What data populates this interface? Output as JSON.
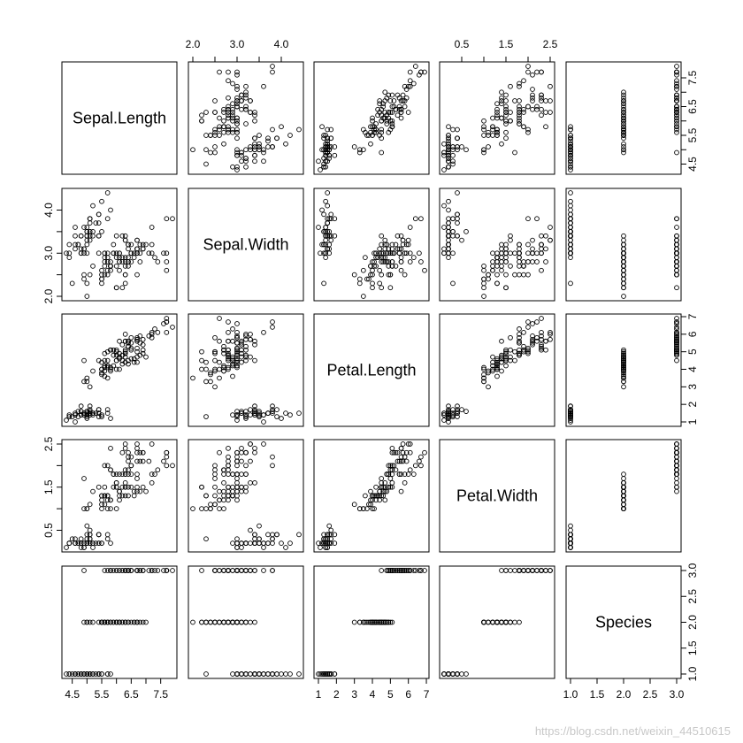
{
  "chart_data": {
    "type": "scatter",
    "chart_kind": "scatterplot-matrix",
    "variables": [
      "Sepal.Length",
      "Sepal.Width",
      "Petal.Length",
      "Petal.Width",
      "Species"
    ],
    "axis_ranges": {
      "Sepal.Length": [
        4.3,
        7.9
      ],
      "Sepal.Width": [
        2.0,
        4.4
      ],
      "Petal.Length": [
        1.0,
        6.9
      ],
      "Petal.Width": [
        0.1,
        2.5
      ],
      "Species": [
        1.0,
        3.0
      ]
    },
    "tick_labels": {
      "Sepal.Length": [
        "4.5",
        "5.5",
        "6.5",
        "7.5"
      ],
      "Sepal.Width": [
        "2.0",
        "3.0",
        "4.0"
      ],
      "Petal.Length": [
        "1",
        "2",
        "3",
        "4",
        "5",
        "6",
        "7"
      ],
      "Petal.Width": [
        "0.5",
        "1.5",
        "2.5"
      ],
      "Species": [
        "1.0",
        "1.5",
        "2.0",
        "2.5",
        "3.0"
      ]
    },
    "minor_ticks": {
      "Sepal.Length": [
        5.0,
        6.0,
        7.0
      ],
      "Sepal.Width": [
        2.5,
        3.5
      ],
      "Petal.Width": [
        1.0,
        2.0
      ]
    },
    "grid": false,
    "legend": "none",
    "marker": "open-circle",
    "point_color": "#000000",
    "columns": [
      "Sepal.Length",
      "Sepal.Width",
      "Petal.Length",
      "Petal.Width",
      "Species"
    ],
    "rows": [
      [
        5.1,
        3.5,
        1.4,
        0.2,
        1
      ],
      [
        4.9,
        3.0,
        1.4,
        0.2,
        1
      ],
      [
        4.7,
        3.2,
        1.3,
        0.2,
        1
      ],
      [
        4.6,
        3.1,
        1.5,
        0.2,
        1
      ],
      [
        5.0,
        3.6,
        1.4,
        0.2,
        1
      ],
      [
        5.4,
        3.9,
        1.7,
        0.4,
        1
      ],
      [
        4.6,
        3.4,
        1.4,
        0.3,
        1
      ],
      [
        5.0,
        3.4,
        1.5,
        0.2,
        1
      ],
      [
        4.4,
        2.9,
        1.4,
        0.2,
        1
      ],
      [
        4.9,
        3.1,
        1.5,
        0.1,
        1
      ],
      [
        5.4,
        3.7,
        1.5,
        0.2,
        1
      ],
      [
        4.8,
        3.4,
        1.6,
        0.2,
        1
      ],
      [
        4.8,
        3.0,
        1.4,
        0.1,
        1
      ],
      [
        4.3,
        3.0,
        1.1,
        0.1,
        1
      ],
      [
        5.8,
        4.0,
        1.2,
        0.2,
        1
      ],
      [
        5.7,
        4.4,
        1.5,
        0.4,
        1
      ],
      [
        5.4,
        3.9,
        1.3,
        0.4,
        1
      ],
      [
        5.1,
        3.5,
        1.4,
        0.3,
        1
      ],
      [
        5.7,
        3.8,
        1.7,
        0.3,
        1
      ],
      [
        5.1,
        3.8,
        1.5,
        0.3,
        1
      ],
      [
        5.4,
        3.4,
        1.7,
        0.2,
        1
      ],
      [
        5.1,
        3.7,
        1.5,
        0.4,
        1
      ],
      [
        4.6,
        3.6,
        1.0,
        0.2,
        1
      ],
      [
        5.1,
        3.3,
        1.7,
        0.5,
        1
      ],
      [
        4.8,
        3.4,
        1.9,
        0.2,
        1
      ],
      [
        5.0,
        3.0,
        1.6,
        0.2,
        1
      ],
      [
        5.0,
        3.4,
        1.6,
        0.4,
        1
      ],
      [
        5.2,
        3.5,
        1.5,
        0.2,
        1
      ],
      [
        5.2,
        3.4,
        1.4,
        0.2,
        1
      ],
      [
        4.7,
        3.2,
        1.6,
        0.2,
        1
      ],
      [
        4.8,
        3.1,
        1.6,
        0.2,
        1
      ],
      [
        5.4,
        3.4,
        1.5,
        0.4,
        1
      ],
      [
        5.2,
        4.1,
        1.5,
        0.1,
        1
      ],
      [
        5.5,
        4.2,
        1.4,
        0.2,
        1
      ],
      [
        4.9,
        3.1,
        1.5,
        0.2,
        1
      ],
      [
        5.0,
        3.2,
        1.2,
        0.2,
        1
      ],
      [
        5.5,
        3.5,
        1.3,
        0.2,
        1
      ],
      [
        4.9,
        3.6,
        1.4,
        0.1,
        1
      ],
      [
        4.4,
        3.0,
        1.3,
        0.2,
        1
      ],
      [
        5.1,
        3.4,
        1.5,
        0.2,
        1
      ],
      [
        5.0,
        3.5,
        1.3,
        0.3,
        1
      ],
      [
        4.5,
        2.3,
        1.3,
        0.3,
        1
      ],
      [
        4.4,
        3.2,
        1.3,
        0.2,
        1
      ],
      [
        5.0,
        3.5,
        1.6,
        0.6,
        1
      ],
      [
        5.1,
        3.8,
        1.9,
        0.4,
        1
      ],
      [
        4.8,
        3.0,
        1.4,
        0.3,
        1
      ],
      [
        5.1,
        3.8,
        1.6,
        0.2,
        1
      ],
      [
        4.6,
        3.2,
        1.4,
        0.2,
        1
      ],
      [
        5.3,
        3.7,
        1.5,
        0.2,
        1
      ],
      [
        5.0,
        3.3,
        1.4,
        0.2,
        1
      ],
      [
        7.0,
        3.2,
        4.7,
        1.4,
        2
      ],
      [
        6.4,
        3.2,
        4.5,
        1.5,
        2
      ],
      [
        6.9,
        3.1,
        4.9,
        1.5,
        2
      ],
      [
        5.5,
        2.3,
        4.0,
        1.3,
        2
      ],
      [
        6.5,
        2.8,
        4.6,
        1.5,
        2
      ],
      [
        5.7,
        2.8,
        4.5,
        1.3,
        2
      ],
      [
        6.3,
        3.3,
        4.7,
        1.6,
        2
      ],
      [
        4.9,
        2.4,
        3.3,
        1.0,
        2
      ],
      [
        6.6,
        2.9,
        4.6,
        1.3,
        2
      ],
      [
        5.2,
        2.7,
        3.9,
        1.4,
        2
      ],
      [
        5.0,
        2.0,
        3.5,
        1.0,
        2
      ],
      [
        5.9,
        3.0,
        4.2,
        1.5,
        2
      ],
      [
        6.0,
        2.2,
        4.0,
        1.0,
        2
      ],
      [
        6.1,
        2.9,
        4.7,
        1.4,
        2
      ],
      [
        5.6,
        2.9,
        3.6,
        1.3,
        2
      ],
      [
        6.7,
        3.1,
        4.4,
        1.4,
        2
      ],
      [
        5.6,
        3.0,
        4.5,
        1.5,
        2
      ],
      [
        5.8,
        2.7,
        4.1,
        1.0,
        2
      ],
      [
        6.2,
        2.2,
        4.5,
        1.5,
        2
      ],
      [
        5.6,
        2.5,
        3.9,
        1.1,
        2
      ],
      [
        5.9,
        3.2,
        4.8,
        1.8,
        2
      ],
      [
        6.1,
        2.8,
        4.0,
        1.3,
        2
      ],
      [
        6.3,
        2.5,
        4.9,
        1.5,
        2
      ],
      [
        6.1,
        2.8,
        4.7,
        1.2,
        2
      ],
      [
        6.4,
        2.9,
        4.3,
        1.3,
        2
      ],
      [
        6.6,
        3.0,
        4.4,
        1.4,
        2
      ],
      [
        6.8,
        2.8,
        4.8,
        1.4,
        2
      ],
      [
        6.7,
        3.0,
        5.0,
        1.7,
        2
      ],
      [
        6.0,
        2.9,
        4.5,
        1.5,
        2
      ],
      [
        5.7,
        2.6,
        3.5,
        1.0,
        2
      ],
      [
        5.5,
        2.4,
        3.8,
        1.1,
        2
      ],
      [
        5.5,
        2.4,
        3.7,
        1.0,
        2
      ],
      [
        5.8,
        2.7,
        3.9,
        1.2,
        2
      ],
      [
        6.0,
        2.7,
        5.1,
        1.6,
        2
      ],
      [
        5.4,
        3.0,
        4.5,
        1.5,
        2
      ],
      [
        6.0,
        3.4,
        4.5,
        1.6,
        2
      ],
      [
        6.7,
        3.1,
        4.7,
        1.5,
        2
      ],
      [
        6.3,
        2.3,
        4.4,
        1.3,
        2
      ],
      [
        5.6,
        3.0,
        4.1,
        1.3,
        2
      ],
      [
        5.5,
        2.5,
        4.0,
        1.3,
        2
      ],
      [
        5.5,
        2.6,
        4.4,
        1.2,
        2
      ],
      [
        6.1,
        3.0,
        4.6,
        1.4,
        2
      ],
      [
        5.8,
        2.6,
        4.0,
        1.2,
        2
      ],
      [
        5.0,
        2.3,
        3.3,
        1.0,
        2
      ],
      [
        5.6,
        2.7,
        4.2,
        1.3,
        2
      ],
      [
        5.7,
        3.0,
        4.2,
        1.2,
        2
      ],
      [
        5.7,
        2.9,
        4.2,
        1.3,
        2
      ],
      [
        6.2,
        2.9,
        4.3,
        1.3,
        2
      ],
      [
        5.1,
        2.5,
        3.0,
        1.1,
        2
      ],
      [
        5.7,
        2.8,
        4.1,
        1.3,
        2
      ],
      [
        6.3,
        3.3,
        6.0,
        2.5,
        3
      ],
      [
        5.8,
        2.7,
        5.1,
        1.9,
        3
      ],
      [
        7.1,
        3.0,
        5.9,
        2.1,
        3
      ],
      [
        6.3,
        2.9,
        5.6,
        1.8,
        3
      ],
      [
        6.5,
        3.0,
        5.8,
        2.2,
        3
      ],
      [
        7.6,
        3.0,
        6.6,
        2.1,
        3
      ],
      [
        4.9,
        2.5,
        4.5,
        1.7,
        3
      ],
      [
        7.3,
        2.9,
        6.3,
        1.8,
        3
      ],
      [
        6.7,
        2.5,
        5.8,
        1.8,
        3
      ],
      [
        7.2,
        3.6,
        6.1,
        2.5,
        3
      ],
      [
        6.5,
        3.2,
        5.1,
        2.0,
        3
      ],
      [
        6.4,
        2.7,
        5.3,
        1.9,
        3
      ],
      [
        6.8,
        3.0,
        5.5,
        2.1,
        3
      ],
      [
        5.7,
        2.5,
        5.0,
        2.0,
        3
      ],
      [
        5.8,
        2.8,
        5.1,
        2.4,
        3
      ],
      [
        6.4,
        3.2,
        5.3,
        2.3,
        3
      ],
      [
        6.5,
        3.0,
        5.5,
        1.8,
        3
      ],
      [
        7.7,
        3.8,
        6.7,
        2.2,
        3
      ],
      [
        7.7,
        2.6,
        6.9,
        2.3,
        3
      ],
      [
        6.0,
        2.2,
        5.0,
        1.5,
        3
      ],
      [
        6.9,
        3.2,
        5.7,
        2.3,
        3
      ],
      [
        5.6,
        2.8,
        4.9,
        2.0,
        3
      ],
      [
        7.7,
        2.8,
        6.7,
        2.0,
        3
      ],
      [
        6.3,
        2.7,
        4.9,
        1.8,
        3
      ],
      [
        6.7,
        3.3,
        5.7,
        2.1,
        3
      ],
      [
        7.2,
        3.2,
        6.0,
        1.8,
        3
      ],
      [
        6.2,
        2.8,
        4.8,
        1.8,
        3
      ],
      [
        6.1,
        3.0,
        4.9,
        1.8,
        3
      ],
      [
        6.4,
        2.8,
        5.6,
        2.1,
        3
      ],
      [
        7.2,
        3.0,
        5.8,
        1.6,
        3
      ],
      [
        7.4,
        2.8,
        6.1,
        1.9,
        3
      ],
      [
        7.9,
        3.8,
        6.4,
        2.0,
        3
      ],
      [
        6.4,
        2.8,
        5.6,
        2.2,
        3
      ],
      [
        6.3,
        2.8,
        5.1,
        1.5,
        3
      ],
      [
        6.1,
        2.6,
        5.6,
        1.4,
        3
      ],
      [
        7.7,
        3.0,
        6.1,
        2.3,
        3
      ],
      [
        6.3,
        3.4,
        5.6,
        2.4,
        3
      ],
      [
        6.4,
        3.1,
        5.5,
        1.8,
        3
      ],
      [
        6.0,
        3.0,
        4.8,
        1.8,
        3
      ],
      [
        6.9,
        3.1,
        5.4,
        2.1,
        3
      ],
      [
        6.7,
        3.1,
        5.6,
        2.4,
        3
      ],
      [
        6.9,
        3.1,
        5.1,
        2.3,
        3
      ],
      [
        5.8,
        2.7,
        5.1,
        1.9,
        3
      ],
      [
        6.8,
        3.2,
        5.9,
        2.3,
        3
      ],
      [
        6.7,
        3.3,
        5.7,
        2.5,
        3
      ],
      [
        6.7,
        3.0,
        5.2,
        2.3,
        3
      ],
      [
        6.3,
        2.5,
        5.0,
        1.9,
        3
      ],
      [
        6.5,
        3.0,
        5.2,
        2.0,
        3
      ],
      [
        6.2,
        3.4,
        5.4,
        2.3,
        3
      ],
      [
        5.9,
        3.0,
        5.1,
        1.8,
        3
      ]
    ]
  },
  "watermark": "https://blog.csdn.net/weixin_44510615"
}
